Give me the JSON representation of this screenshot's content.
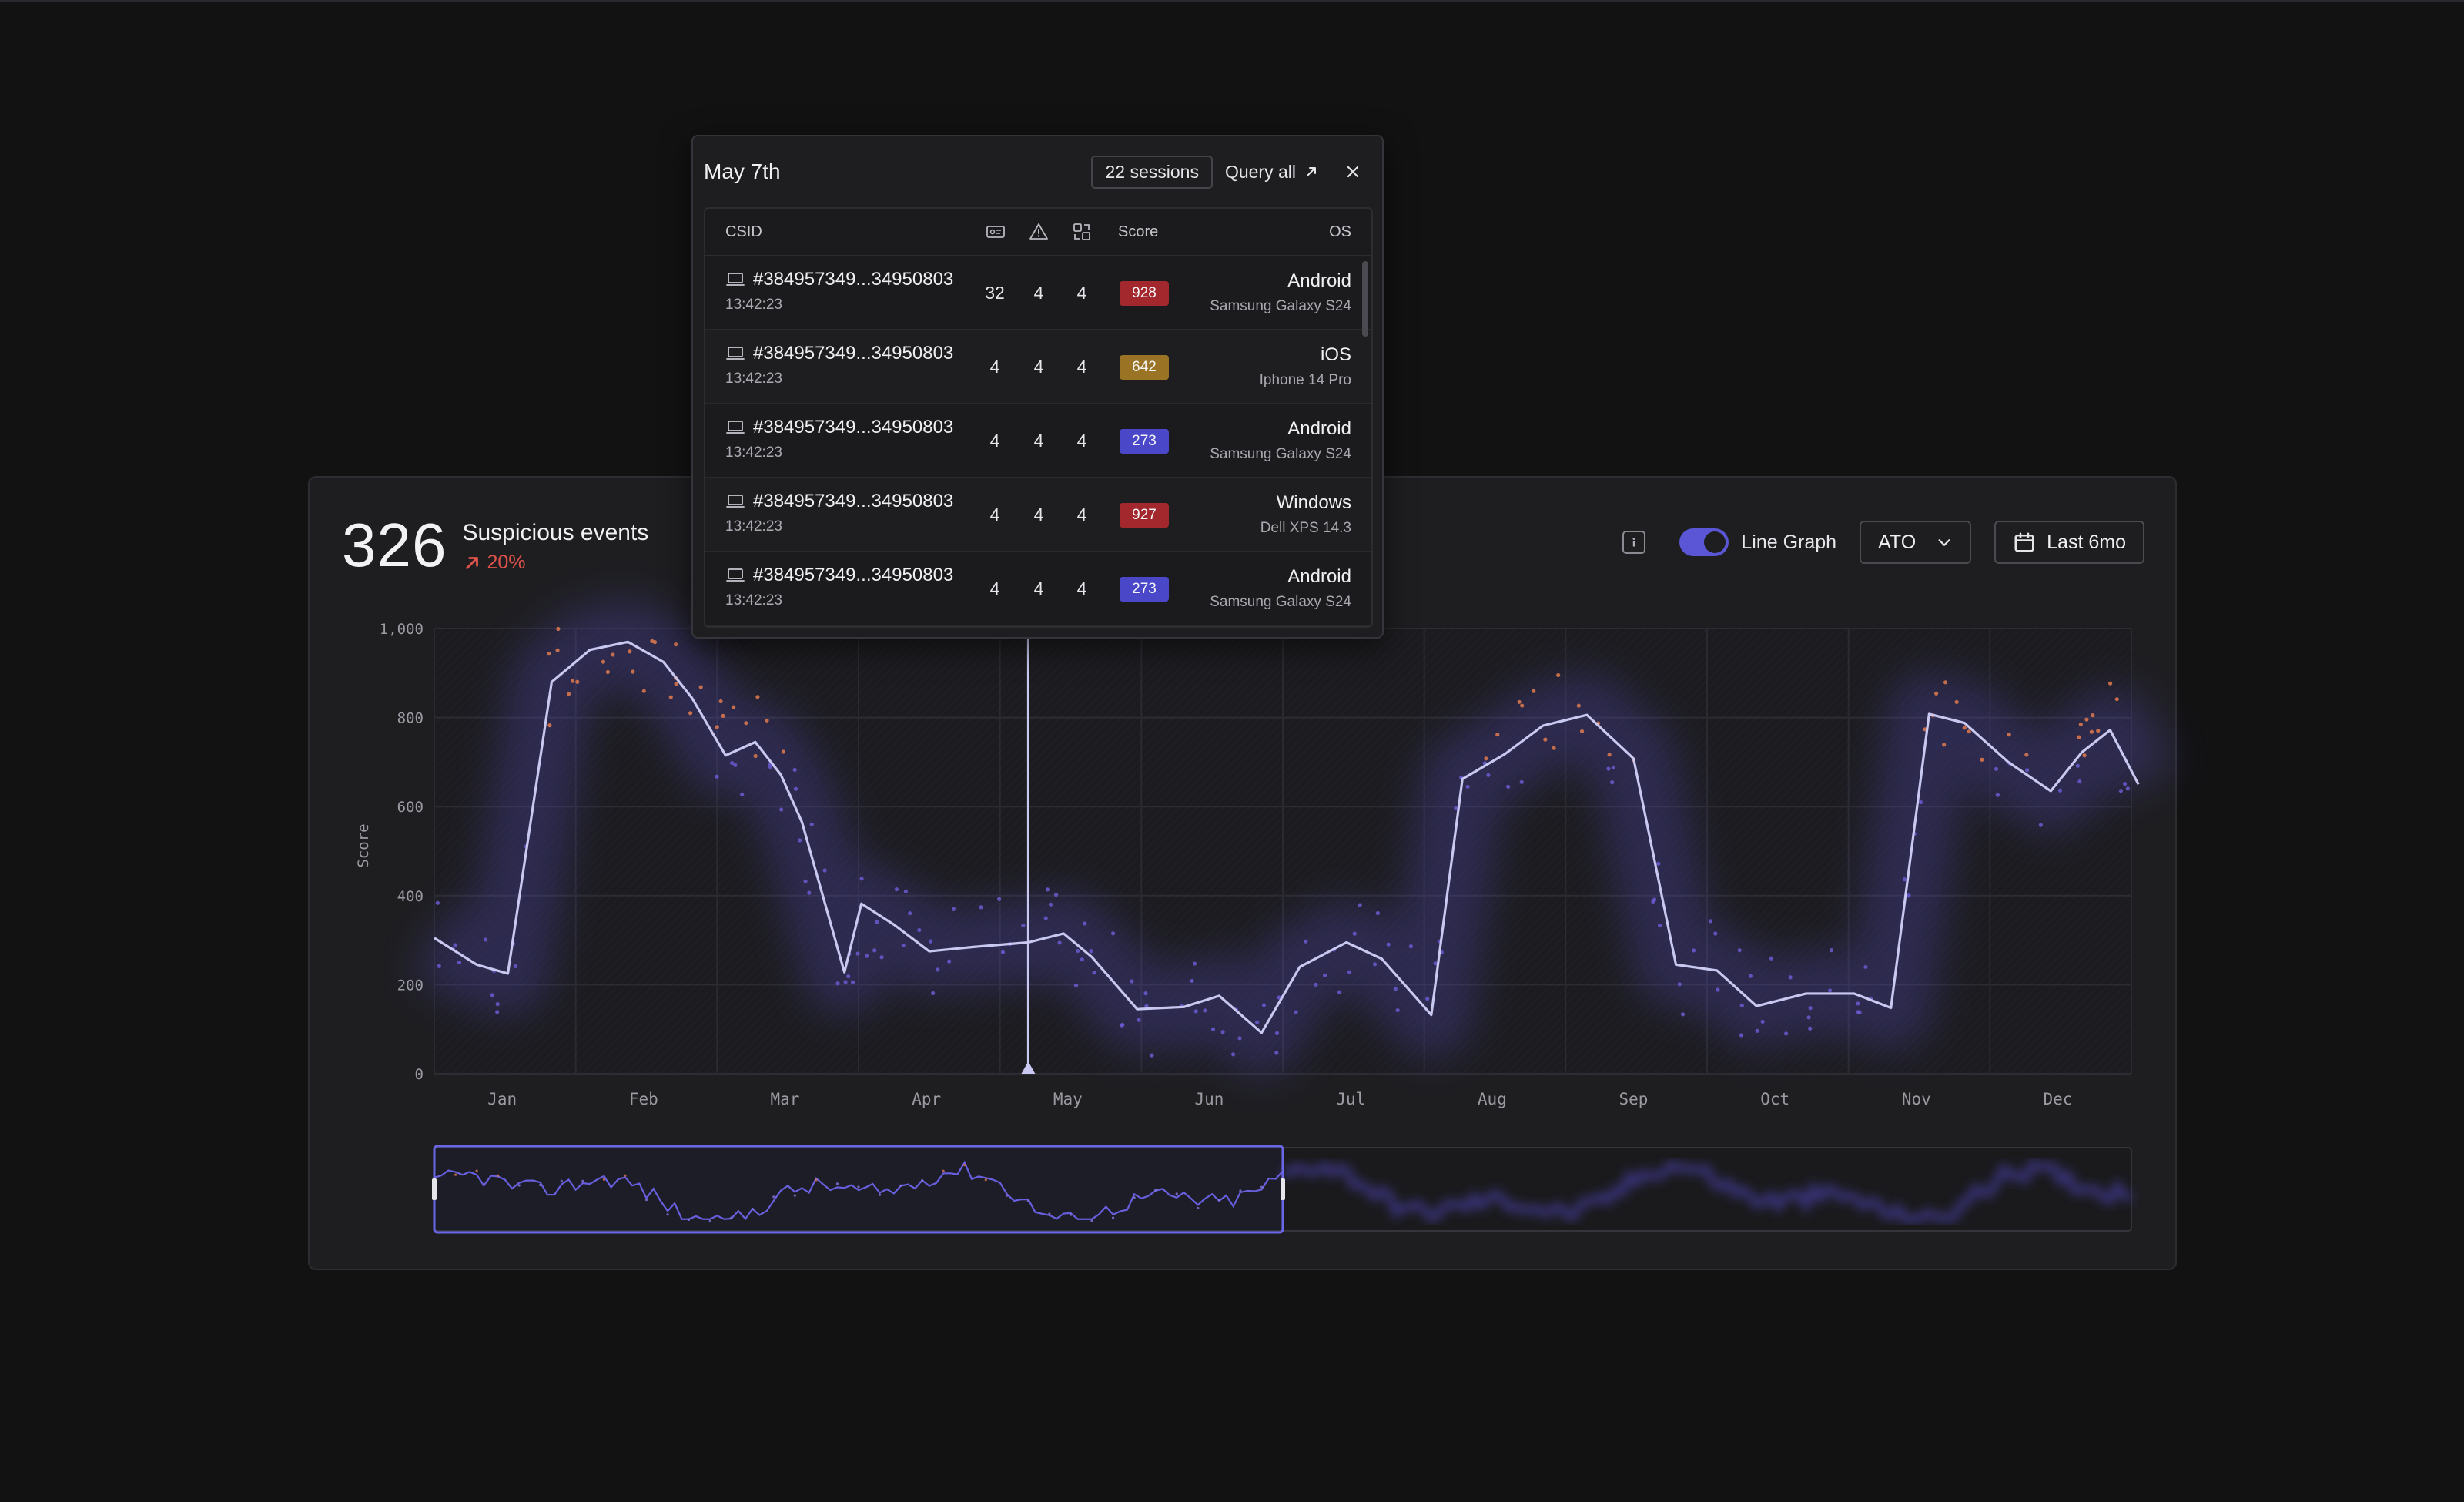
{
  "headline": {
    "count": "326",
    "label": "Suspicious events",
    "change": "20%"
  },
  "controls": {
    "info_icon": "info-icon",
    "toggle_on": true,
    "toggle_label": "Line Graph",
    "filter_value": "ATO",
    "date_range": "Last 6mo"
  },
  "popup": {
    "title": "May 7th",
    "sessions": "22 sessions",
    "query_all": "Query all",
    "columns": {
      "csid": "CSID",
      "score": "Score",
      "os": "OS"
    },
    "column_icons": [
      "id-card-icon",
      "warning-icon",
      "device-scan-icon"
    ],
    "rows": [
      {
        "csid": "#384957349...34950803",
        "time": "13:42:23",
        "c1": "32",
        "c2": "4",
        "c3": "4",
        "score": "928",
        "level": "high",
        "os": "Android",
        "device": "Samsung Galaxy S24"
      },
      {
        "csid": "#384957349...34950803",
        "time": "13:42:23",
        "c1": "4",
        "c2": "4",
        "c3": "4",
        "score": "642",
        "level": "medium",
        "os": "iOS",
        "device": "Iphone 14 Pro"
      },
      {
        "csid": "#384957349...34950803",
        "time": "13:42:23",
        "c1": "4",
        "c2": "4",
        "c3": "4",
        "score": "273",
        "level": "low",
        "os": "Android",
        "device": "Samsung Galaxy S24"
      },
      {
        "csid": "#384957349...34950803",
        "time": "13:42:23",
        "c1": "4",
        "c2": "4",
        "c3": "4",
        "score": "927",
        "level": "high",
        "os": "Windows",
        "device": "Dell XPS 14.3"
      },
      {
        "csid": "#384957349...34950803",
        "time": "13:42:23",
        "c1": "4",
        "c2": "4",
        "c3": "4",
        "score": "273",
        "level": "low",
        "os": "Android",
        "device": "Samsung Galaxy S24"
      }
    ]
  },
  "colors": {
    "accent": "#5a56d6",
    "line": "#c8c8f0",
    "high": "#a3282d",
    "medium": "#9a7424",
    "low": "#4a48c8",
    "danger": "#e0524a",
    "dot_high": "#e07a4e",
    "dot_low": "#6a5ad0"
  },
  "chart_data": {
    "type": "line",
    "ylabel": "Score",
    "ylim": [
      0,
      1000
    ],
    "yticks": [
      "1,000",
      "800",
      "600",
      "400",
      "200",
      "0"
    ],
    "ytick_values": [
      1000,
      800,
      600,
      400,
      200,
      0
    ],
    "xlim": [
      0,
      12
    ],
    "month_labels": [
      "Jan",
      "Feb",
      "Mar",
      "Apr",
      "May",
      "Jun",
      "Jul",
      "Aug",
      "Sep",
      "Oct",
      "Nov",
      "Dec"
    ],
    "selected_x": 4.2,
    "series": [
      {
        "x": [
          0,
          0.3,
          0.52,
          0.83,
          1.1,
          1.37,
          1.62,
          1.82,
          2.06,
          2.27,
          2.45,
          2.6,
          2.9,
          3.02,
          3.25,
          3.5,
          3.82,
          4.2,
          4.45,
          4.65,
          4.97,
          5.3,
          5.55,
          5.85,
          6.12,
          6.45,
          6.7,
          7.05,
          7.27,
          7.57,
          7.84,
          8.15,
          8.48,
          8.78,
          9.07,
          9.35,
          9.7,
          10.04,
          10.3,
          10.57,
          10.82,
          11.13,
          11.43,
          11.65,
          11.85,
          12.05
        ],
        "y": [
          305,
          245,
          225,
          880,
          952,
          970,
          925,
          845,
          715,
          745,
          672,
          565,
          228,
          382,
          335,
          275,
          285,
          295,
          315,
          262,
          145,
          150,
          175,
          92,
          240,
          295,
          258,
          132,
          662,
          718,
          782,
          806,
          708,
          245,
          232,
          152,
          180,
          180,
          148,
          808,
          788,
          700,
          635,
          722,
          772,
          650
        ]
      }
    ],
    "overview_window": [
      0,
      6.0
    ]
  }
}
